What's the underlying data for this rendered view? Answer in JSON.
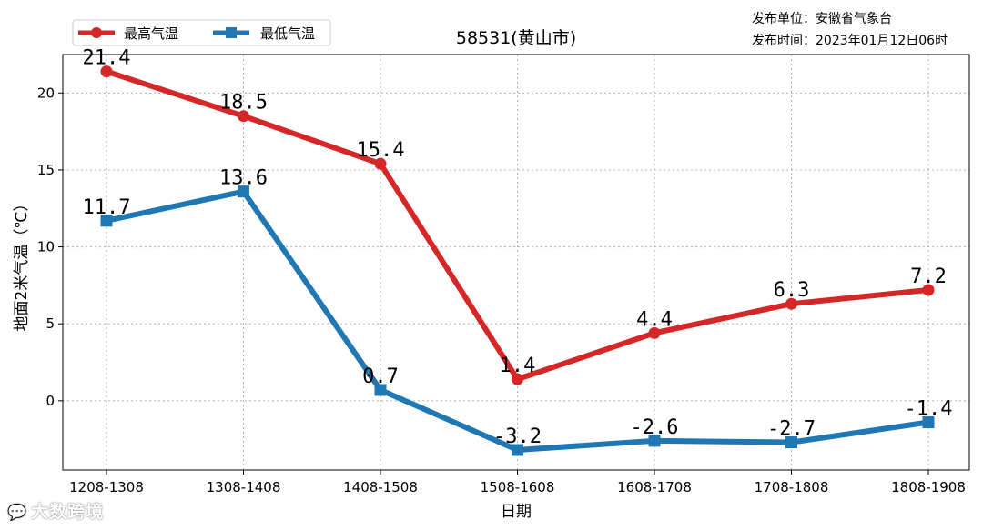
{
  "publisher": {
    "unit": "发布单位：安徽省气象台",
    "time": "发布时间：2023年01月12日06时"
  },
  "watermark": {
    "text": "大数跨境",
    "logo_icon": "chat-bubble-logo-icon"
  },
  "colors": {
    "max_series": "#d62728",
    "min_series": "#1f77b4",
    "grid": "#b0b0b0",
    "axis": "#000000"
  },
  "chart_data": {
    "type": "line",
    "title": "58531(黄山市)",
    "xlabel": "日期",
    "ylabel": "地面2米气温（℃）",
    "categories": [
      "1208-1308",
      "1308-1408",
      "1408-1508",
      "1508-1608",
      "1608-1708",
      "1708-1808",
      "1808-1908"
    ],
    "ylim": [
      -4.5,
      22.5
    ],
    "yticks": [
      0,
      5,
      10,
      15,
      20
    ],
    "grid": true,
    "legend_position": "top-left",
    "series": [
      {
        "name": "最高气温",
        "marker": "circle",
        "color": "#d62728",
        "values": [
          21.4,
          18.5,
          15.4,
          1.4,
          4.4,
          6.3,
          7.2
        ],
        "labels": [
          "21.4",
          "18.5",
          "15.4",
          "1.4",
          "4.4",
          "6.3",
          "7.2"
        ]
      },
      {
        "name": "最低气温",
        "marker": "square",
        "color": "#1f77b4",
        "values": [
          11.7,
          13.6,
          0.7,
          -3.2,
          -2.6,
          -2.7,
          -1.4
        ],
        "labels": [
          "11.7",
          "13.6",
          "0.7",
          "-3.2",
          "-2.6",
          "-2.7",
          "-1.4"
        ]
      }
    ]
  }
}
